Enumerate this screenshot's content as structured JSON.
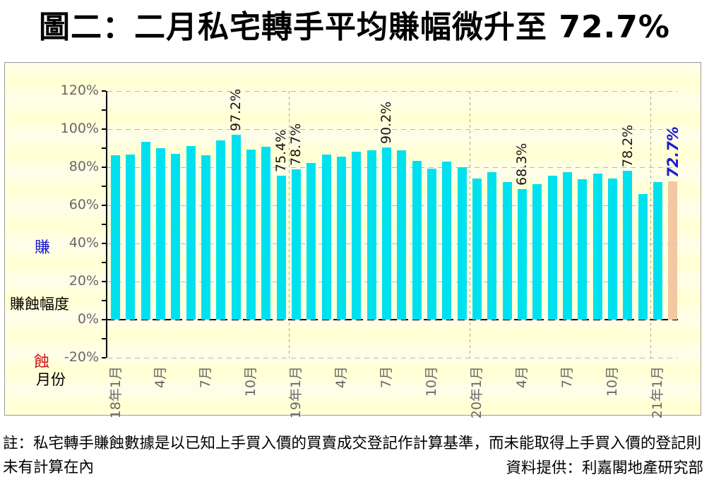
{
  "page_title": "圖二：二月私宅轉手平均賺幅微升至 72.7%",
  "axis_side_labels": {
    "profit": "賺",
    "loss": "蝕",
    "y_axis_title": "賺蝕幅度",
    "x_axis_title": "月份"
  },
  "footer": {
    "note": "註：私宅轉手賺蝕數據是以已知上手買入價的買賣成交登記作計算基準，而未能取得上手買入價的登記則未有計算在內",
    "credit": "資料提供：利嘉閣地產研究部"
  },
  "colors": {
    "bar": "#00e1ef",
    "highlight_bar": "#f2c7a2",
    "profit_label": "#1414cc",
    "loss_label": "#d01414",
    "highlight_annotation": "#1c1ccd",
    "figure_background": "#ffffd4",
    "gridline": "#b9b9a6"
  },
  "chart_data": {
    "type": "bar",
    "title": "圖二：二月私宅轉手平均賺幅微升至 72.7%",
    "xlabel": "月份",
    "ylabel": "賺蝕幅度",
    "ylim": [
      -20,
      120
    ],
    "ytick_values": [
      120,
      100,
      80,
      60,
      40,
      20,
      0,
      -20
    ],
    "ytick_labels": [
      "120%",
      "100%",
      "80%",
      "60%",
      "40%",
      "20%",
      "0%",
      "-20%"
    ],
    "minor_ytick_step": 10,
    "grid": "dashed-horizontal",
    "legend": "none",
    "categories": [
      "18年1月",
      "18年2月",
      "18年3月",
      "18年4月",
      "18年5月",
      "18年6月",
      "18年7月",
      "18年8月",
      "18年9月",
      "18年10月",
      "18年11月",
      "18年12月",
      "19年1月",
      "19年2月",
      "19年3月",
      "19年4月",
      "19年5月",
      "19年6月",
      "19年7月",
      "19年8月",
      "19年9月",
      "19年10月",
      "19年11月",
      "19年12月",
      "20年1月",
      "20年2月",
      "20年3月",
      "20年4月",
      "20年5月",
      "20年6月",
      "20年7月",
      "20年8月",
      "20年9月",
      "20年10月",
      "20年11月",
      "20年12月",
      "21年1月",
      "21年2月"
    ],
    "values": [
      86.2,
      86.8,
      93.3,
      89.9,
      86.9,
      91.1,
      86.2,
      94.0,
      97.2,
      89.3,
      90.8,
      75.4,
      78.7,
      82.2,
      86.8,
      85.7,
      88.1,
      88.8,
      90.2,
      89.0,
      83.4,
      79.3,
      82.8,
      80.0,
      74.2,
      77.5,
      72.3,
      68.3,
      71.1,
      75.4,
      77.5,
      73.6,
      76.6,
      73.9,
      78.2,
      65.9,
      72.2,
      72.7
    ],
    "x_tick_labels": [
      "18年1月",
      "4月",
      "7月",
      "10月",
      "19年1月",
      "4月",
      "7月",
      "10月",
      "20年1月",
      "4月",
      "7月",
      "10月",
      "21年1月"
    ],
    "x_tick_interval": 3,
    "annotations": [
      {
        "index": 8,
        "category": "18年9月",
        "label": "97.2%",
        "highlight": false
      },
      {
        "index": 11,
        "category": "18年12月",
        "label": "75.4%",
        "highlight": false
      },
      {
        "index": 12,
        "category": "19年1月",
        "label": "78.7%",
        "highlight": false
      },
      {
        "index": 18,
        "category": "19年7月",
        "label": "90.2%",
        "highlight": false
      },
      {
        "index": 27,
        "category": "20年4月",
        "label": "68.3%",
        "highlight": false
      },
      {
        "index": 34,
        "category": "20年11月",
        "label": "78.2%",
        "highlight": false
      },
      {
        "index": 37,
        "category": "21年2月",
        "label": "72.7%",
        "highlight": true
      }
    ],
    "year_separators_after_index": [
      11,
      23,
      35
    ],
    "highlight_index": 37
  }
}
